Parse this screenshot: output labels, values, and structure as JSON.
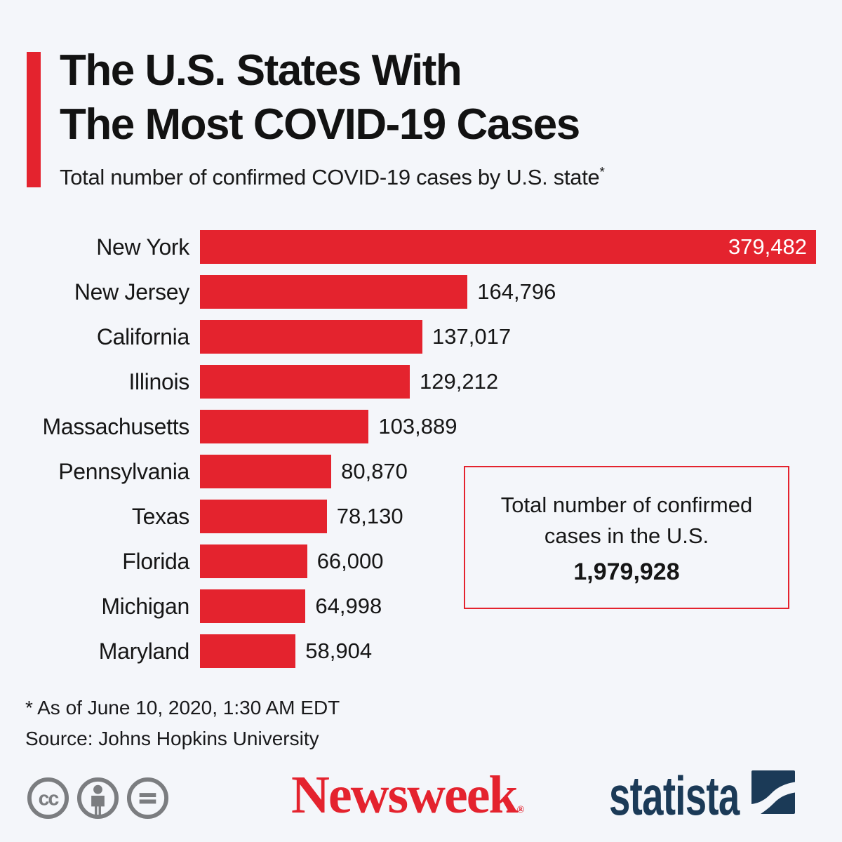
{
  "colors": {
    "background": "#f4f6fa",
    "accent_red": "#e4232e",
    "statista_navy": "#1b3a57",
    "license_gray": "#7b7d80",
    "text_dark": "#161616"
  },
  "chart_data": {
    "type": "bar",
    "orientation": "horizontal",
    "title_line1": "The U.S. States With",
    "title_line2": "The Most COVID-19 Cases",
    "subtitle": "Total number of confirmed COVID-19 cases by U.S. state",
    "subtitle_footnote_marker": "*",
    "categories": [
      "New York",
      "New Jersey",
      "California",
      "Illinois",
      "Massachusetts",
      "Pennsylvania",
      "Texas",
      "Florida",
      "Michigan",
      "Maryland"
    ],
    "values": [
      379482,
      164796,
      137017,
      129212,
      103889,
      80870,
      78130,
      66000,
      64998,
      58904
    ],
    "value_labels": [
      "379,482",
      "164,796",
      "137,017",
      "129,212",
      "103,889",
      "80,870",
      "78,130",
      "66,000",
      "64,998",
      "58,904"
    ],
    "xlim": [
      0,
      379482
    ],
    "bar_color": "#e4232e",
    "inside_value_indices": [
      0
    ],
    "grid": false,
    "legend": false
  },
  "annotation_box": {
    "line1": "Total number of confirmed",
    "line2": "cases in the U.S.",
    "value": "1,979,928"
  },
  "footnotes": {
    "note": "* As of June 10, 2020, 1:30 AM EDT",
    "source": "Source: Johns Hopkins University"
  },
  "branding": {
    "publisher": "Newsweek",
    "publisher_reg_mark": "®",
    "provider": "statista",
    "license_icons": [
      "cc-icon",
      "attribution-icon",
      "no-derivatives-icon"
    ]
  }
}
